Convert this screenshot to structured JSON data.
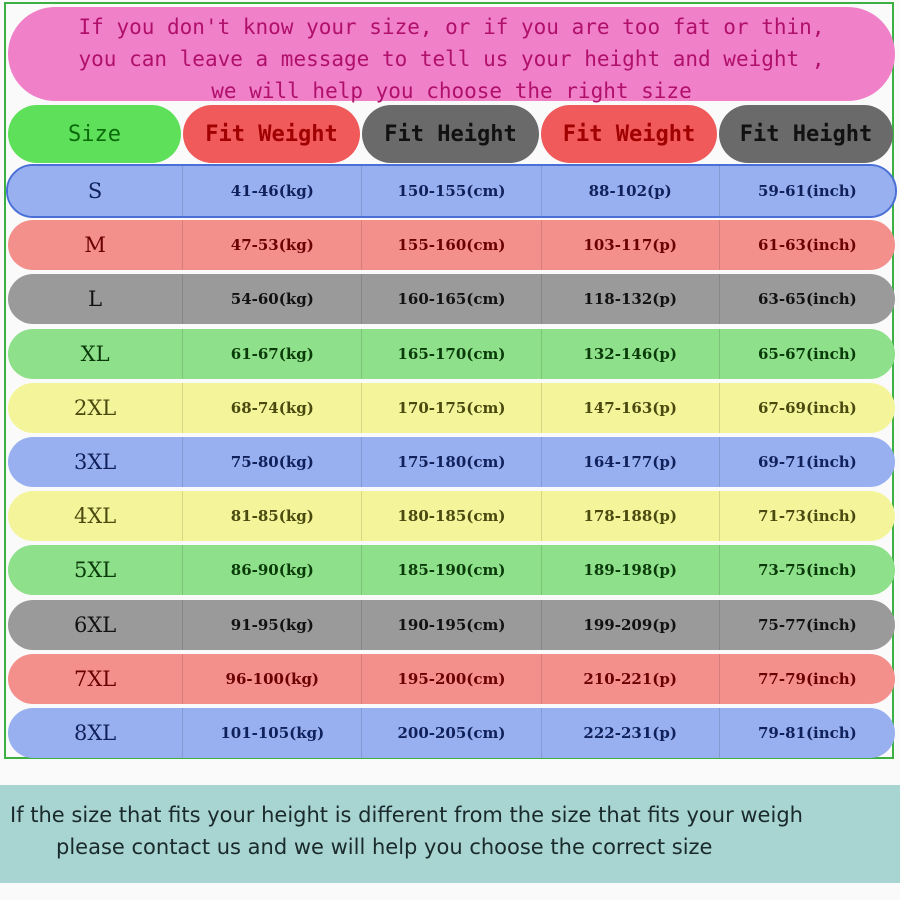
{
  "top_message": [
    "If you don't know your size, or if you are too fat or thin,",
    "you can leave a message to tell us your height and weight ,",
    "we will help you choose the right size"
  ],
  "headers": [
    "Size",
    "Fit Weight",
    "Fit Height",
    "Fit Weight",
    "Fit Height"
  ],
  "header_colors": [
    "#5ee05a",
    "#f05a5a",
    "#6a6a6a",
    "#f05a5a",
    "#6a6a6a"
  ],
  "header_text_colors": [
    "#0a6a0a",
    "#a00000",
    "#111111",
    "#a00000",
    "#111111"
  ],
  "rows": [
    {
      "size": "S",
      "kg": "41-46(kg)",
      "cm": "150-155(cm)",
      "lb": "88-102(p)",
      "inch": "59-61(inch)",
      "color": "#98b0f0",
      "text": "#10205a"
    },
    {
      "size": "M",
      "kg": "47-53(kg)",
      "cm": "155-160(cm)",
      "lb": "103-117(p)",
      "inch": "61-63(inch)",
      "color": "#f4908c",
      "text": "#6a0000"
    },
    {
      "size": "L",
      "kg": "54-60(kg)",
      "cm": "160-165(cm)",
      "lb": "118-132(p)",
      "inch": "63-65(inch)",
      "color": "#9a9a9a",
      "text": "#111111"
    },
    {
      "size": "XL",
      "kg": "61-67(kg)",
      "cm": "165-170(cm)",
      "lb": "132-146(p)",
      "inch": "65-67(inch)",
      "color": "#8ee08a",
      "text": "#0a3a0a"
    },
    {
      "size": "2XL",
      "kg": "68-74(kg)",
      "cm": "170-175(cm)",
      "lb": "147-163(p)",
      "inch": "67-69(inch)",
      "color": "#f4f49a",
      "text": "#4a4a10"
    },
    {
      "size": "3XL",
      "kg": "75-80(kg)",
      "cm": "175-180(cm)",
      "lb": "164-177(p)",
      "inch": "69-71(inch)",
      "color": "#98b0f0",
      "text": "#10205a"
    },
    {
      "size": "4XL",
      "kg": "81-85(kg)",
      "cm": "180-185(cm)",
      "lb": "178-188(p)",
      "inch": "71-73(inch)",
      "color": "#f4f49a",
      "text": "#4a4a10"
    },
    {
      "size": "5XL",
      "kg": "86-90(kg)",
      "cm": "185-190(cm)",
      "lb": "189-198(p)",
      "inch": "73-75(inch)",
      "color": "#8ee08a",
      "text": "#0a3a0a"
    },
    {
      "size": "6XL",
      "kg": "91-95(kg)",
      "cm": "190-195(cm)",
      "lb": "199-209(p)",
      "inch": "75-77(inch)",
      "color": "#9a9a9a",
      "text": "#111111"
    },
    {
      "size": "7XL",
      "kg": "96-100(kg)",
      "cm": "195-200(cm)",
      "lb": "210-221(p)",
      "inch": "77-79(inch)",
      "color": "#f4908c",
      "text": "#6a0000"
    },
    {
      "size": "8XL",
      "kg": "101-105(kg)",
      "cm": "200-205(cm)",
      "lb": "222-231(p)",
      "inch": "79-81(inch)",
      "color": "#98b0f0",
      "text": "#10205a"
    }
  ],
  "bottom_message": [
    "If the size that fits your height is different from the size that fits your weigh",
    "please contact us and we will help you choose the correct size"
  ]
}
